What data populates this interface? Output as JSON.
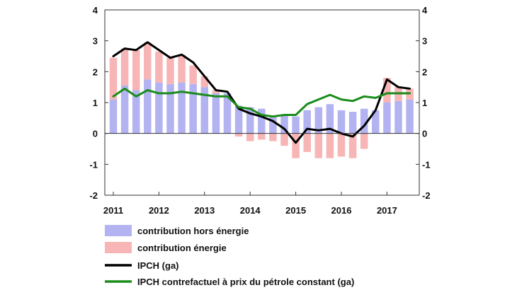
{
  "chart_data": {
    "type": "bar",
    "title": "",
    "xlabel": "",
    "ylabel": "",
    "ylim": [
      -2,
      4
    ],
    "yticks": [
      -2,
      -1,
      0,
      1,
      2,
      3,
      4
    ],
    "yticks_right": [
      -2,
      -1,
      0,
      1,
      2,
      3,
      4
    ],
    "xticks": [
      "2011",
      "2012",
      "2013",
      "2014",
      "2015",
      "2016",
      "2017"
    ],
    "grid": false,
    "legend_position": "bottom",
    "colors": {
      "hors_energie": "#b3b3f2",
      "energie": "#f7b5b5",
      "ipch": "#000000",
      "contrefactuel": "#1a8c1a",
      "axis": "#333333"
    },
    "x": [
      "2011Q1",
      "2011Q2",
      "2011Q3",
      "2011Q4",
      "2012Q1",
      "2012Q2",
      "2012Q3",
      "2012Q4",
      "2013Q1",
      "2013Q2",
      "2013Q3",
      "2013Q4",
      "2014Q1",
      "2014Q2",
      "2014Q3",
      "2014Q4",
      "2015Q1",
      "2015Q2",
      "2015Q3",
      "2015Q4",
      "2016Q1",
      "2016Q2",
      "2016Q3",
      "2016Q4",
      "2017Q1",
      "2017Q2",
      "2017Q3"
    ],
    "series": [
      {
        "name": "contribution hors énergie",
        "kind": "bar",
        "values": [
          1.1,
          1.55,
          1.4,
          1.75,
          1.65,
          1.6,
          1.65,
          1.6,
          1.5,
          1.3,
          1.3,
          0.9,
          0.85,
          0.8,
          0.55,
          0.6,
          0.55,
          0.75,
          0.85,
          0.95,
          0.75,
          0.7,
          0.8,
          0.75,
          1.0,
          1.05,
          1.1
        ]
      },
      {
        "name": "contribution énergie",
        "kind": "bar",
        "values": [
          1.35,
          1.2,
          1.3,
          1.2,
          1.0,
          0.85,
          0.9,
          0.6,
          0.35,
          0.1,
          0.0,
          -0.1,
          -0.25,
          -0.2,
          -0.25,
          -0.4,
          -0.8,
          -0.6,
          -0.8,
          -0.8,
          -0.75,
          -0.8,
          -0.5,
          0.0,
          0.8,
          0.45,
          0.35
        ]
      },
      {
        "name": "IPCH (ga)",
        "kind": "line",
        "values": [
          2.5,
          2.75,
          2.7,
          2.95,
          2.7,
          2.45,
          2.55,
          2.3,
          1.85,
          1.4,
          1.35,
          0.8,
          0.65,
          0.55,
          0.4,
          0.15,
          -0.3,
          0.15,
          0.1,
          0.15,
          0.0,
          -0.1,
          0.25,
          0.75,
          1.75,
          1.5,
          1.45
        ]
      },
      {
        "name": "IPCH contrefactuel à prix du pétrole constant (ga)",
        "kind": "line",
        "values": [
          1.2,
          1.45,
          1.2,
          1.4,
          1.3,
          1.3,
          1.35,
          1.3,
          1.25,
          1.2,
          1.2,
          0.85,
          0.8,
          0.6,
          0.55,
          0.6,
          0.6,
          0.95,
          1.1,
          1.25,
          1.1,
          1.05,
          1.2,
          1.15,
          1.3,
          1.3,
          1.3
        ]
      }
    ]
  }
}
